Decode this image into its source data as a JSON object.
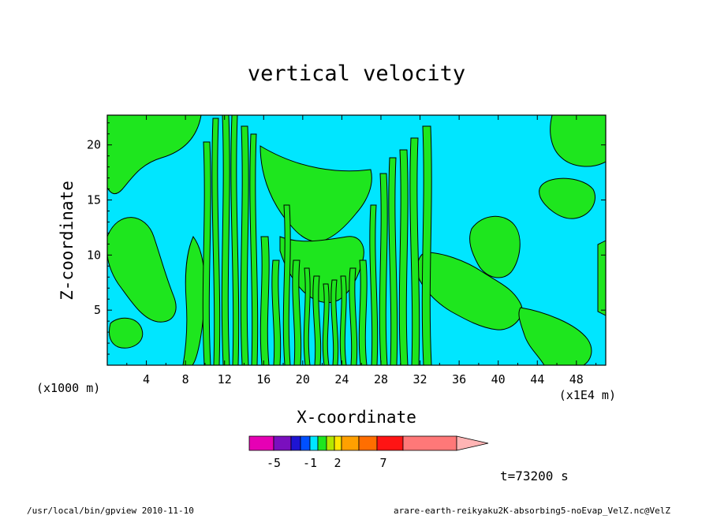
{
  "chart_data": {
    "type": "heatmap",
    "title": "vertical velocity",
    "xlabel": "X-coordinate",
    "ylabel": "Z-coordinate",
    "x_unit_left": "(x1000 m)",
    "x_unit_right": "(x1E4 m)",
    "x_ticks": [
      "4",
      "8",
      "12",
      "16",
      "20",
      "24",
      "28",
      "32",
      "36",
      "40",
      "44",
      "48"
    ],
    "y_ticks": [
      "5",
      "10",
      "15",
      "20"
    ],
    "xlim": [
      0,
      51
    ],
    "ylim": [
      0,
      22.7
    ],
    "time_label": "t=73200 s",
    "colorbar": {
      "colors": [
        "#e600b4",
        "#7a0fbe",
        "#1e14d2",
        "#0050ff",
        "#00e6ff",
        "#1ee61e",
        "#b4e600",
        "#ffe600",
        "#ffa000",
        "#ff6e00",
        "#ff1414",
        "#ff7878",
        "#ffb4b4"
      ],
      "labels": [
        "-5",
        "-1",
        "2",
        "7"
      ]
    },
    "field_colors": {
      "negative": "#00e6ff",
      "positive": "#1ee61e"
    }
  },
  "footer": {
    "left": "/usr/local/bin/gpview  2010-11-10",
    "right": "arare-earth-reikyaku2K-absorbing5-noEvap_VelZ.nc@VelZ"
  }
}
